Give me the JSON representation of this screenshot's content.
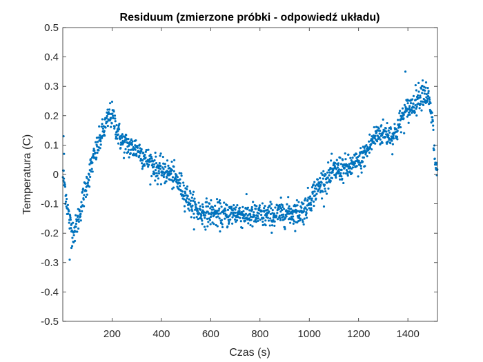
{
  "chart_data": {
    "type": "scatter",
    "title": "Residuum (zmierzone próbki - odpowiedź układu)",
    "xlabel": "Czas (s)",
    "ylabel": "Temperatura (C)",
    "xlim": [
      0,
      1520
    ],
    "ylim": [
      -0.5,
      0.5
    ],
    "grid": false,
    "color": "#0072BD",
    "x_ticks": [
      200,
      400,
      600,
      800,
      1000,
      1200,
      1400
    ],
    "y_ticks": [
      -0.5,
      -0.4,
      -0.3,
      -0.2,
      -0.1,
      0,
      0.1,
      0.2,
      0.3,
      0.4,
      0.5
    ],
    "x_tick_labels": [
      "200",
      "400",
      "600",
      "800",
      "1000",
      "1200",
      "1400"
    ],
    "y_tick_labels": [
      "-0.5",
      "-0.4",
      "-0.3",
      "-0.2",
      "-0.1",
      "0",
      "0.1",
      "0.2",
      "0.3",
      "0.4",
      "0.5"
    ],
    "trend": {
      "x": [
        0,
        10,
        20,
        30,
        40,
        50,
        60,
        80,
        100,
        120,
        140,
        160,
        180,
        190,
        200,
        210,
        220,
        240,
        260,
        280,
        300,
        320,
        340,
        360,
        380,
        400,
        420,
        440,
        460,
        480,
        500,
        520,
        540,
        560,
        600,
        650,
        700,
        750,
        800,
        850,
        900,
        950,
        980,
        1000,
        1020,
        1040,
        1060,
        1080,
        1100,
        1120,
        1150,
        1180,
        1200,
        1220,
        1240,
        1260,
        1280,
        1300,
        1320,
        1340,
        1360,
        1380,
        1400,
        1420,
        1440,
        1460,
        1480,
        1500,
        1505,
        1510,
        1515,
        1520
      ],
      "y": [
        0.0,
        -0.05,
        -0.12,
        -0.17,
        -0.19,
        -0.19,
        -0.16,
        -0.09,
        -0.02,
        0.04,
        0.09,
        0.14,
        0.18,
        0.2,
        0.2,
        0.18,
        0.15,
        0.11,
        0.1,
        0.09,
        0.09,
        0.07,
        0.05,
        0.04,
        0.02,
        0.01,
        0.01,
        0.0,
        -0.02,
        -0.04,
        -0.07,
        -0.1,
        -0.12,
        -0.13,
        -0.13,
        -0.14,
        -0.13,
        -0.14,
        -0.14,
        -0.14,
        -0.13,
        -0.13,
        -0.12,
        -0.09,
        -0.06,
        -0.04,
        -0.02,
        -0.01,
        0.01,
        0.02,
        0.02,
        0.03,
        0.04,
        0.06,
        0.09,
        0.12,
        0.14,
        0.14,
        0.14,
        0.13,
        0.16,
        0.2,
        0.22,
        0.24,
        0.26,
        0.28,
        0.27,
        0.18,
        0.1,
        0.05,
        0.02,
        0.0
      ]
    },
    "outliers": [
      {
        "x": 3,
        "y": 0.13
      },
      {
        "x": 5,
        "y": 0.07
      },
      {
        "x": 28,
        "y": -0.29
      },
      {
        "x": 35,
        "y": -0.25
      },
      {
        "x": 1390,
        "y": 0.35
      },
      {
        "x": 1460,
        "y": 0.32
      }
    ]
  }
}
